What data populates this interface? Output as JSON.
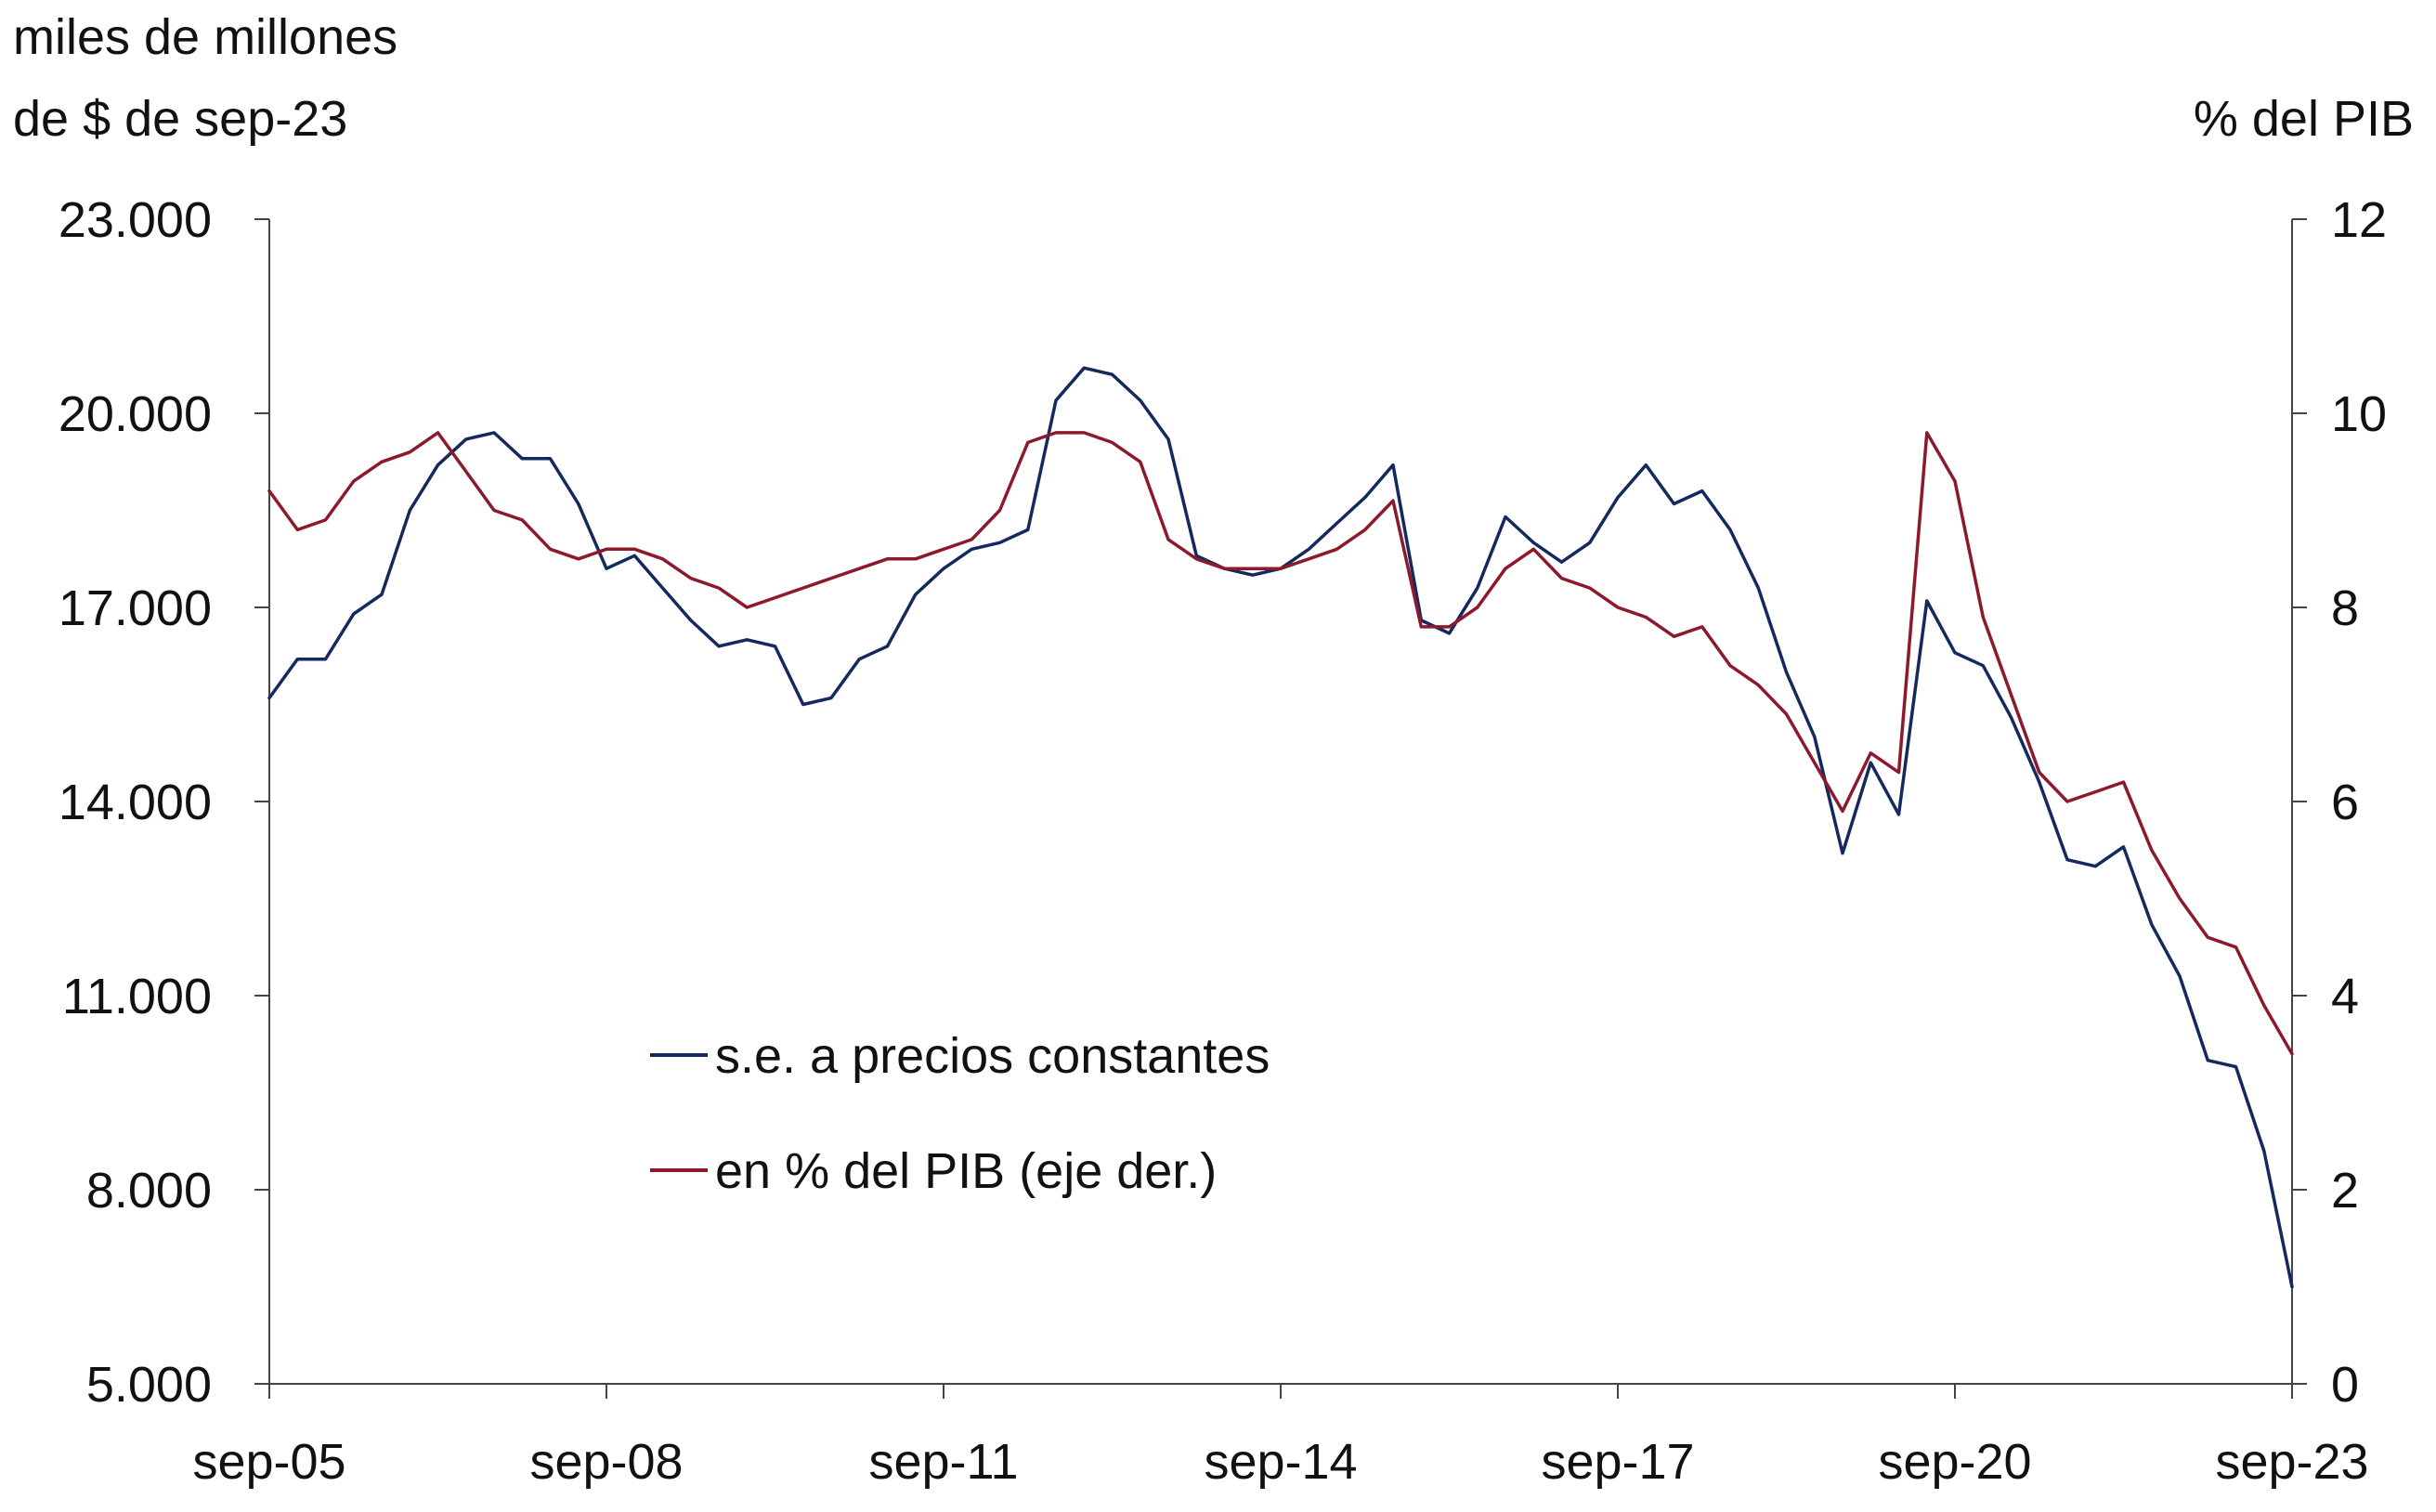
{
  "chart_data": {
    "type": "line",
    "y_left_label_line1": "miles de millones",
    "y_left_label_line2": "de $ de sep-23",
    "y_right_label": "% del PIB",
    "ylim_left": [
      5000,
      23000
    ],
    "ylim_right": [
      0,
      12
    ],
    "y_left_ticks": [
      "5.000",
      "8.000",
      "11.000",
      "14.000",
      "17.000",
      "20.000",
      "23.000"
    ],
    "y_right_ticks": [
      "0",
      "2",
      "4",
      "6",
      "8",
      "10",
      "12"
    ],
    "x_ticks": [
      "sep-05",
      "sep-08",
      "sep-11",
      "sep-14",
      "sep-17",
      "sep-20",
      "sep-23"
    ],
    "grid": false,
    "legend_position": "lower-left-center",
    "series": [
      {
        "name": "s.e. a precios constantes",
        "axis": "left",
        "color": "#14295e",
        "x": [
          "sep-05",
          "dic-05",
          "mar-06",
          "jun-06",
          "sep-06",
          "dic-06",
          "mar-07",
          "jun-07",
          "sep-07",
          "dic-07",
          "mar-08",
          "jun-08",
          "sep-08",
          "dic-08",
          "mar-09",
          "jun-09",
          "sep-09",
          "dic-09",
          "mar-10",
          "jun-10",
          "sep-10",
          "dic-10",
          "mar-11",
          "jun-11",
          "sep-11",
          "dic-11",
          "mar-12",
          "jun-12",
          "sep-12",
          "dic-12",
          "mar-13",
          "jun-13",
          "sep-13",
          "dic-13",
          "mar-14",
          "jun-14",
          "sep-14",
          "dic-14",
          "mar-15",
          "jun-15",
          "sep-15",
          "dic-15",
          "mar-16",
          "jun-16",
          "sep-16",
          "dic-16",
          "mar-17",
          "jun-17",
          "sep-17",
          "dic-17",
          "mar-18",
          "jun-18",
          "sep-18",
          "dic-18",
          "mar-19",
          "jun-19",
          "sep-19",
          "dic-19",
          "mar-20",
          "jun-20",
          "sep-20",
          "dic-20",
          "mar-21",
          "jun-21",
          "sep-21",
          "dic-21",
          "mar-22",
          "jun-22",
          "sep-22",
          "dic-22",
          "mar-23",
          "jun-23",
          "sep-23"
        ],
        "values": [
          15600,
          16200,
          16200,
          16900,
          17200,
          18500,
          19200,
          19600,
          19700,
          19300,
          19300,
          18600,
          17600,
          17800,
          17300,
          16800,
          16400,
          16500,
          16400,
          15500,
          15600,
          16200,
          16400,
          17200,
          17600,
          17900,
          18000,
          18200,
          20200,
          20700,
          20600,
          20200,
          19600,
          17800,
          17600,
          17500,
          17600,
          17900,
          18300,
          18700,
          19200,
          16800,
          16600,
          17300,
          18400,
          18000,
          17700,
          18000,
          18700,
          19200,
          18600,
          18800,
          18200,
          17300,
          16000,
          15000,
          13200,
          14600,
          13800,
          17100,
          16300,
          16100,
          15300,
          14300,
          13100,
          13000,
          13300,
          12100,
          11300,
          10000,
          9900,
          8600,
          6500
        ]
      },
      {
        "name": "en % del PIB (eje der.)",
        "axis": "right",
        "color": "#8c1a2c",
        "x": [
          "sep-05",
          "dic-05",
          "mar-06",
          "jun-06",
          "sep-06",
          "dic-06",
          "mar-07",
          "jun-07",
          "sep-07",
          "dic-07",
          "mar-08",
          "jun-08",
          "sep-08",
          "dic-08",
          "mar-09",
          "jun-09",
          "sep-09",
          "dic-09",
          "mar-10",
          "jun-10",
          "sep-10",
          "dic-10",
          "mar-11",
          "jun-11",
          "sep-11",
          "dic-11",
          "mar-12",
          "jun-12",
          "sep-12",
          "dic-12",
          "mar-13",
          "jun-13",
          "sep-13",
          "dic-13",
          "mar-14",
          "jun-14",
          "sep-14",
          "dic-14",
          "mar-15",
          "jun-15",
          "sep-15",
          "dic-15",
          "mar-16",
          "jun-16",
          "sep-16",
          "dic-16",
          "mar-17",
          "jun-17",
          "sep-17",
          "dic-17",
          "mar-18",
          "jun-18",
          "sep-18",
          "dic-18",
          "mar-19",
          "jun-19",
          "sep-19",
          "dic-19",
          "mar-20",
          "jun-20",
          "sep-20",
          "dic-20",
          "mar-21",
          "jun-21",
          "sep-21",
          "dic-21",
          "mar-22",
          "jun-22",
          "sep-22",
          "dic-22",
          "mar-23",
          "jun-23",
          "sep-23"
        ],
        "values": [
          9.2,
          8.8,
          8.9,
          9.3,
          9.5,
          9.6,
          9.8,
          9.4,
          9.0,
          8.9,
          8.6,
          8.5,
          8.6,
          8.6,
          8.5,
          8.3,
          8.2,
          8.0,
          8.1,
          8.2,
          8.3,
          8.4,
          8.5,
          8.5,
          8.6,
          8.7,
          9.0,
          9.7,
          9.8,
          9.8,
          9.7,
          9.5,
          8.7,
          8.5,
          8.4,
          8.4,
          8.4,
          8.5,
          8.6,
          8.8,
          9.1,
          7.8,
          7.8,
          8.0,
          8.4,
          8.6,
          8.3,
          8.2,
          8.0,
          7.9,
          7.7,
          7.8,
          7.4,
          7.2,
          6.9,
          6.4,
          5.9,
          6.5,
          6.3,
          9.8,
          9.3,
          7.9,
          7.1,
          6.3,
          6.0,
          6.1,
          6.2,
          5.5,
          5.0,
          4.6,
          4.5,
          3.9,
          3.4
        ]
      }
    ]
  }
}
